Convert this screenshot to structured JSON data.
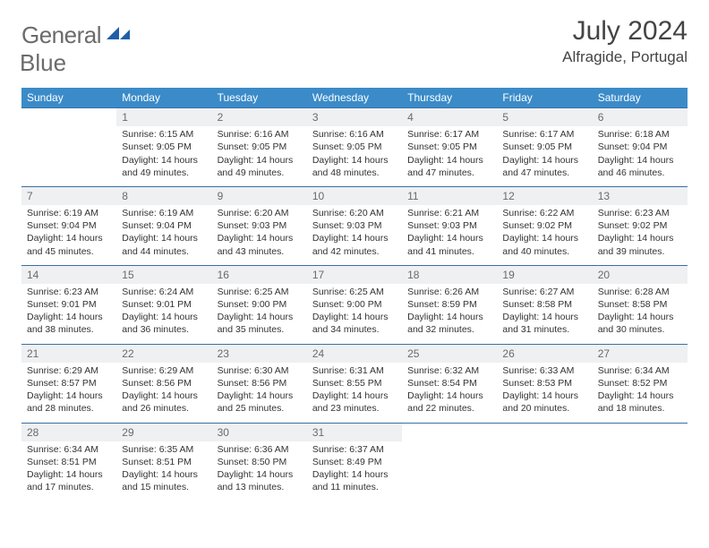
{
  "logo": {
    "word1": "General",
    "word2": "Blue",
    "text_color": "#6b6b6b",
    "icon_color": "#1f5fa8"
  },
  "header": {
    "month": "July 2024",
    "location": "Alfragide, Portugal"
  },
  "colors": {
    "header_bg": "#3b8bc9",
    "header_text": "#ffffff",
    "row_border": "#3b6fa0",
    "daynum_bg": "#eef0f2",
    "daynum_text": "#6a6a6a",
    "body_text": "#333333",
    "page_bg": "#ffffff"
  },
  "typography": {
    "month_fontsize": 30,
    "location_fontsize": 17,
    "header_fontsize": 12,
    "daynum_fontsize": 12,
    "body_fontsize": 10.5
  },
  "weekdays": [
    "Sunday",
    "Monday",
    "Tuesday",
    "Wednesday",
    "Thursday",
    "Friday",
    "Saturday"
  ],
  "weeks": [
    [
      {
        "empty": true
      },
      {
        "day": "1",
        "sunrise": "Sunrise: 6:15 AM",
        "sunset": "Sunset: 9:05 PM",
        "daylight1": "Daylight: 14 hours",
        "daylight2": "and 49 minutes."
      },
      {
        "day": "2",
        "sunrise": "Sunrise: 6:16 AM",
        "sunset": "Sunset: 9:05 PM",
        "daylight1": "Daylight: 14 hours",
        "daylight2": "and 49 minutes."
      },
      {
        "day": "3",
        "sunrise": "Sunrise: 6:16 AM",
        "sunset": "Sunset: 9:05 PM",
        "daylight1": "Daylight: 14 hours",
        "daylight2": "and 48 minutes."
      },
      {
        "day": "4",
        "sunrise": "Sunrise: 6:17 AM",
        "sunset": "Sunset: 9:05 PM",
        "daylight1": "Daylight: 14 hours",
        "daylight2": "and 47 minutes."
      },
      {
        "day": "5",
        "sunrise": "Sunrise: 6:17 AM",
        "sunset": "Sunset: 9:05 PM",
        "daylight1": "Daylight: 14 hours",
        "daylight2": "and 47 minutes."
      },
      {
        "day": "6",
        "sunrise": "Sunrise: 6:18 AM",
        "sunset": "Sunset: 9:04 PM",
        "daylight1": "Daylight: 14 hours",
        "daylight2": "and 46 minutes."
      }
    ],
    [
      {
        "day": "7",
        "sunrise": "Sunrise: 6:19 AM",
        "sunset": "Sunset: 9:04 PM",
        "daylight1": "Daylight: 14 hours",
        "daylight2": "and 45 minutes."
      },
      {
        "day": "8",
        "sunrise": "Sunrise: 6:19 AM",
        "sunset": "Sunset: 9:04 PM",
        "daylight1": "Daylight: 14 hours",
        "daylight2": "and 44 minutes."
      },
      {
        "day": "9",
        "sunrise": "Sunrise: 6:20 AM",
        "sunset": "Sunset: 9:03 PM",
        "daylight1": "Daylight: 14 hours",
        "daylight2": "and 43 minutes."
      },
      {
        "day": "10",
        "sunrise": "Sunrise: 6:20 AM",
        "sunset": "Sunset: 9:03 PM",
        "daylight1": "Daylight: 14 hours",
        "daylight2": "and 42 minutes."
      },
      {
        "day": "11",
        "sunrise": "Sunrise: 6:21 AM",
        "sunset": "Sunset: 9:03 PM",
        "daylight1": "Daylight: 14 hours",
        "daylight2": "and 41 minutes."
      },
      {
        "day": "12",
        "sunrise": "Sunrise: 6:22 AM",
        "sunset": "Sunset: 9:02 PM",
        "daylight1": "Daylight: 14 hours",
        "daylight2": "and 40 minutes."
      },
      {
        "day": "13",
        "sunrise": "Sunrise: 6:23 AM",
        "sunset": "Sunset: 9:02 PM",
        "daylight1": "Daylight: 14 hours",
        "daylight2": "and 39 minutes."
      }
    ],
    [
      {
        "day": "14",
        "sunrise": "Sunrise: 6:23 AM",
        "sunset": "Sunset: 9:01 PM",
        "daylight1": "Daylight: 14 hours",
        "daylight2": "and 38 minutes."
      },
      {
        "day": "15",
        "sunrise": "Sunrise: 6:24 AM",
        "sunset": "Sunset: 9:01 PM",
        "daylight1": "Daylight: 14 hours",
        "daylight2": "and 36 minutes."
      },
      {
        "day": "16",
        "sunrise": "Sunrise: 6:25 AM",
        "sunset": "Sunset: 9:00 PM",
        "daylight1": "Daylight: 14 hours",
        "daylight2": "and 35 minutes."
      },
      {
        "day": "17",
        "sunrise": "Sunrise: 6:25 AM",
        "sunset": "Sunset: 9:00 PM",
        "daylight1": "Daylight: 14 hours",
        "daylight2": "and 34 minutes."
      },
      {
        "day": "18",
        "sunrise": "Sunrise: 6:26 AM",
        "sunset": "Sunset: 8:59 PM",
        "daylight1": "Daylight: 14 hours",
        "daylight2": "and 32 minutes."
      },
      {
        "day": "19",
        "sunrise": "Sunrise: 6:27 AM",
        "sunset": "Sunset: 8:58 PM",
        "daylight1": "Daylight: 14 hours",
        "daylight2": "and 31 minutes."
      },
      {
        "day": "20",
        "sunrise": "Sunrise: 6:28 AM",
        "sunset": "Sunset: 8:58 PM",
        "daylight1": "Daylight: 14 hours",
        "daylight2": "and 30 minutes."
      }
    ],
    [
      {
        "day": "21",
        "sunrise": "Sunrise: 6:29 AM",
        "sunset": "Sunset: 8:57 PM",
        "daylight1": "Daylight: 14 hours",
        "daylight2": "and 28 minutes."
      },
      {
        "day": "22",
        "sunrise": "Sunrise: 6:29 AM",
        "sunset": "Sunset: 8:56 PM",
        "daylight1": "Daylight: 14 hours",
        "daylight2": "and 26 minutes."
      },
      {
        "day": "23",
        "sunrise": "Sunrise: 6:30 AM",
        "sunset": "Sunset: 8:56 PM",
        "daylight1": "Daylight: 14 hours",
        "daylight2": "and 25 minutes."
      },
      {
        "day": "24",
        "sunrise": "Sunrise: 6:31 AM",
        "sunset": "Sunset: 8:55 PM",
        "daylight1": "Daylight: 14 hours",
        "daylight2": "and 23 minutes."
      },
      {
        "day": "25",
        "sunrise": "Sunrise: 6:32 AM",
        "sunset": "Sunset: 8:54 PM",
        "daylight1": "Daylight: 14 hours",
        "daylight2": "and 22 minutes."
      },
      {
        "day": "26",
        "sunrise": "Sunrise: 6:33 AM",
        "sunset": "Sunset: 8:53 PM",
        "daylight1": "Daylight: 14 hours",
        "daylight2": "and 20 minutes."
      },
      {
        "day": "27",
        "sunrise": "Sunrise: 6:34 AM",
        "sunset": "Sunset: 8:52 PM",
        "daylight1": "Daylight: 14 hours",
        "daylight2": "and 18 minutes."
      }
    ],
    [
      {
        "day": "28",
        "sunrise": "Sunrise: 6:34 AM",
        "sunset": "Sunset: 8:51 PM",
        "daylight1": "Daylight: 14 hours",
        "daylight2": "and 17 minutes."
      },
      {
        "day": "29",
        "sunrise": "Sunrise: 6:35 AM",
        "sunset": "Sunset: 8:51 PM",
        "daylight1": "Daylight: 14 hours",
        "daylight2": "and 15 minutes."
      },
      {
        "day": "30",
        "sunrise": "Sunrise: 6:36 AM",
        "sunset": "Sunset: 8:50 PM",
        "daylight1": "Daylight: 14 hours",
        "daylight2": "and 13 minutes."
      },
      {
        "day": "31",
        "sunrise": "Sunrise: 6:37 AM",
        "sunset": "Sunset: 8:49 PM",
        "daylight1": "Daylight: 14 hours",
        "daylight2": "and 11 minutes."
      },
      {
        "empty": true
      },
      {
        "empty": true
      },
      {
        "empty": true
      }
    ]
  ]
}
